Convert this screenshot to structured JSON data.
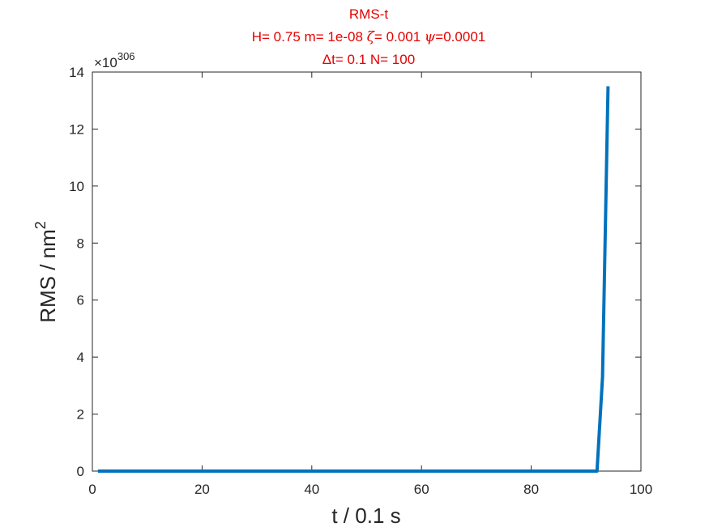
{
  "chart_data": {
    "type": "line",
    "title_lines": [
      "RMS-t",
      "H= 0.75 m= 1e-08 ζ= 0.001 ψ=0.0001",
      "Δt= 0.1 N= 100"
    ],
    "xlabel": "t / 0.1 s",
    "ylabel_text": "RMS / nm",
    "ylabel_sup": "2",
    "exponent_base": "×10",
    "exponent_power": "306",
    "xlim": [
      0,
      100
    ],
    "ylim": [
      0,
      14
    ],
    "xticks": [
      "0",
      "20",
      "40",
      "60",
      "80",
      "100"
    ],
    "yticks": [
      "0",
      "2",
      "4",
      "6",
      "8",
      "10",
      "12",
      "14"
    ],
    "grid": false,
    "series": [
      {
        "color": "#0072bd",
        "x": [
          1,
          92,
          93,
          94
        ],
        "y": [
          0,
          0,
          3.3,
          13.5
        ]
      }
    ]
  }
}
